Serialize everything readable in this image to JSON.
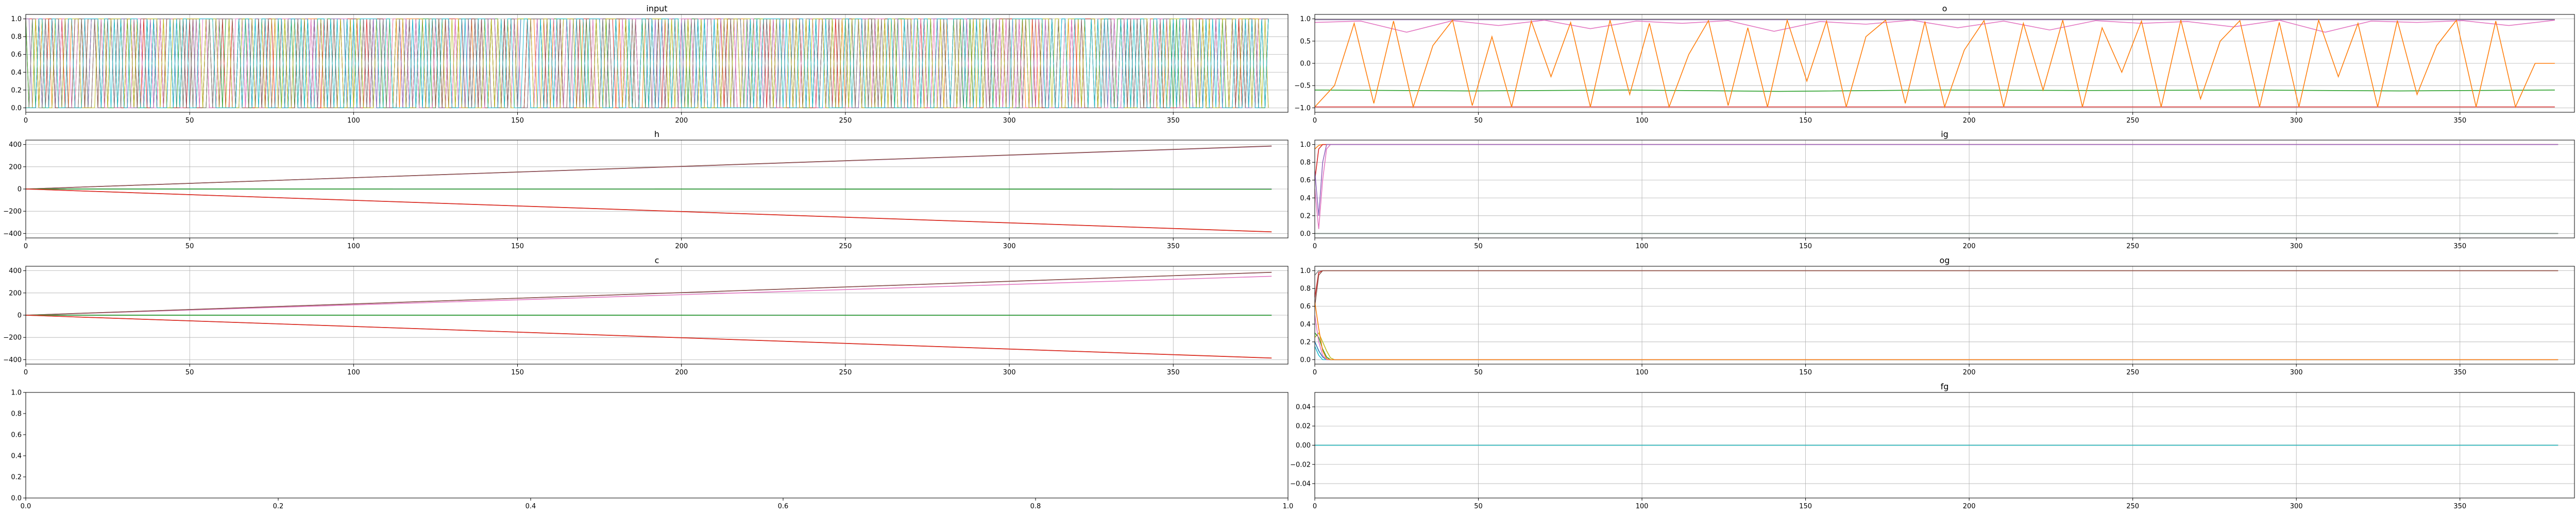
{
  "figure": {
    "background": "#ffffff"
  },
  "chart_data": [
    {
      "id": "input",
      "type": "line",
      "title": "input",
      "xlim": [
        0,
        385
      ],
      "ylim": [
        -0.05,
        1.05
      ],
      "grid": true,
      "xticks": [
        0,
        50,
        100,
        150,
        200,
        250,
        300,
        350
      ],
      "yticks": [
        0.0,
        0.2,
        0.4,
        0.6,
        0.8,
        1.0
      ],
      "ytick_labels": [
        "0.0",
        "0.2",
        "0.4",
        "0.6",
        "0.8",
        "1.0"
      ],
      "n_points": 380,
      "binary_series": {
        "count": 10,
        "colors": [
          "#1f77b4",
          "#ff7f0e",
          "#2ca02c",
          "#d62728",
          "#9467bd",
          "#8c564b",
          "#e377c2",
          "#7f7f7f",
          "#bcbd22",
          "#17becf"
        ],
        "min": 0.0,
        "max": 1.0
      },
      "series": []
    },
    {
      "id": "o",
      "type": "line",
      "title": "o",
      "xlim": [
        0,
        385
      ],
      "ylim": [
        -1.1,
        1.1
      ],
      "grid": true,
      "xticks": [
        0,
        50,
        100,
        150,
        200,
        250,
        300,
        350
      ],
      "yticks": [
        -1.0,
        -0.5,
        0.0,
        0.5,
        1.0
      ],
      "ytick_labels": [
        "−1.0",
        "−0.5",
        "0.0",
        "0.5",
        "1.0"
      ],
      "n_points": 380,
      "series": [
        {
          "color": "#d62728",
          "values": [
            -0.98,
            -0.98
          ]
        },
        {
          "color": "#2ca02c",
          "values": [
            -0.6,
            -0.62,
            -0.6,
            -0.63,
            -0.6,
            -0.61,
            -0.6,
            -0.62,
            -0.6
          ]
        },
        {
          "color": "#9467bd",
          "values": [
            0.98,
            0.98
          ]
        },
        {
          "color": "#7f7f7f",
          "values": [
            0.99,
            0.99
          ]
        },
        {
          "color": "#e377c2",
          "values": [
            0.92,
            0.95,
            0.7,
            0.96,
            0.85,
            0.97,
            0.78,
            0.95,
            0.9,
            0.96,
            0.72,
            0.94,
            0.88,
            0.97,
            0.8,
            0.95,
            0.75,
            0.96,
            0.9,
            0.94,
            0.82,
            0.97,
            0.7,
            0.95,
            0.92,
            0.96,
            0.85,
            0.97
          ]
        },
        {
          "color": "#ff7f0e",
          "values": [
            -0.98,
            -0.5,
            0.9,
            -0.9,
            0.95,
            -0.98,
            0.4,
            0.97,
            -0.95,
            0.6,
            -0.98,
            0.95,
            -0.3,
            0.92,
            -0.98,
            0.97,
            -0.7,
            0.9,
            -0.98,
            0.2,
            0.96,
            -0.95,
            0.8,
            -0.98,
            0.97,
            -0.4,
            0.95,
            -0.98,
            0.6,
            0.97,
            -0.9,
            0.94,
            -0.98,
            0.3,
            0.96,
            -0.98,
            0.9,
            -0.6,
            0.97,
            -0.98,
            0.8,
            -0.2,
            0.95,
            -0.98,
            0.97,
            -0.8,
            0.5,
            0.96,
            -0.98,
            0.92,
            -0.98,
            0.97,
            -0.3,
            0.9,
            -0.98,
            0.96,
            -0.7,
            0.4,
            0.97,
            -0.98,
            0.95,
            -0.98,
            0.0,
            0.0
          ]
        }
      ]
    },
    {
      "id": "h",
      "type": "line",
      "title": "h",
      "xlim": [
        0,
        385
      ],
      "ylim": [
        -440,
        440
      ],
      "grid": true,
      "xticks": [
        0,
        50,
        100,
        150,
        200,
        250,
        300,
        350
      ],
      "yticks": [
        -400,
        -200,
        0,
        200,
        400
      ],
      "ytick_labels": [
        "−400",
        "−200",
        "0",
        "200",
        "400"
      ],
      "series": [
        {
          "color": "#1f77b4",
          "values": [
            0,
            0
          ]
        },
        {
          "color": "#7f7f7f",
          "values": [
            0,
            0
          ]
        },
        {
          "color": "#e377c2",
          "values": [
            0,
            385
          ]
        },
        {
          "color": "#9467bd",
          "values": [
            0,
            386
          ]
        },
        {
          "color": "#8c564b",
          "values": [
            0,
            387
          ]
        },
        {
          "color": "#2ca02c",
          "values": [
            0,
            -2
          ]
        },
        {
          "color": "#ff7f0e",
          "values": [
            0,
            -385
          ]
        },
        {
          "color": "#d62728",
          "values": [
            0,
            -386
          ]
        }
      ]
    },
    {
      "id": "ig",
      "type": "line",
      "title": "ig",
      "xlim": [
        0,
        385
      ],
      "ylim": [
        -0.05,
        1.05
      ],
      "grid": true,
      "xticks": [
        0,
        50,
        100,
        150,
        200,
        250,
        300,
        350
      ],
      "yticks": [
        0.0,
        0.2,
        0.4,
        0.6,
        0.8,
        1.0
      ],
      "ytick_labels": [
        "0.0",
        "0.2",
        "0.4",
        "0.6",
        "0.8",
        "1.0"
      ],
      "series": [
        {
          "color": "#1f77b4",
          "values": [
            0.0,
            0.0
          ]
        },
        {
          "color": "#2ca02c",
          "values": [
            0.0,
            0.0
          ]
        },
        {
          "color": "#7f7f7f",
          "values": [
            0.0,
            0.0
          ]
        },
        {
          "color": "#ff7f0e",
          "values": [
            0.95,
            0.99,
            1.0,
            1.0
          ]
        },
        {
          "color": "#d62728",
          "values": [
            0.6,
            0.95,
            1.0,
            1.0
          ]
        },
        {
          "color": "#e377c2",
          "values": [
            0.5,
            0.05,
            0.6,
            0.95,
            1.0,
            1.0
          ]
        },
        {
          "color": "#9467bd",
          "values": [
            0.7,
            0.2,
            0.8,
            1.0,
            1.0
          ]
        }
      ]
    },
    {
      "id": "c",
      "type": "line",
      "title": "c",
      "xlim": [
        0,
        385
      ],
      "ylim": [
        -440,
        440
      ],
      "grid": true,
      "xticks": [
        0,
        50,
        100,
        150,
        200,
        250,
        300,
        350
      ],
      "yticks": [
        -400,
        -200,
        0,
        200,
        400
      ],
      "ytick_labels": [
        "−400",
        "−200",
        "0",
        "200",
        "400"
      ],
      "series": [
        {
          "color": "#1f77b4",
          "values": [
            0,
            0
          ]
        },
        {
          "color": "#7f7f7f",
          "values": [
            0,
            0
          ]
        },
        {
          "color": "#e377c2",
          "values": [
            0,
            350
          ]
        },
        {
          "color": "#9467bd",
          "values": [
            0,
            385
          ]
        },
        {
          "color": "#8c564b",
          "values": [
            0,
            386
          ]
        },
        {
          "color": "#2ca02c",
          "values": [
            0,
            -1
          ]
        },
        {
          "color": "#ff7f0e",
          "values": [
            0,
            -385
          ]
        },
        {
          "color": "#d62728",
          "values": [
            0,
            -386
          ]
        }
      ]
    },
    {
      "id": "og",
      "type": "line",
      "title": "og",
      "xlim": [
        0,
        385
      ],
      "ylim": [
        -0.05,
        1.05
      ],
      "grid": true,
      "xticks": [
        0,
        50,
        100,
        150,
        200,
        250,
        300,
        350
      ],
      "yticks": [
        0.0,
        0.2,
        0.4,
        0.6,
        0.8,
        1.0
      ],
      "ytick_labels": [
        "0.0",
        "0.2",
        "0.4",
        "0.6",
        "0.8",
        "1.0"
      ],
      "series": [
        {
          "color": "#7f7f7f",
          "values": [
            0.95,
            1.0,
            1.0
          ]
        },
        {
          "color": "#d62728",
          "values": [
            0.7,
            0.98,
            1.0,
            1.0
          ]
        },
        {
          "color": "#8c564b",
          "values": [
            0.6,
            0.95,
            1.0,
            1.0
          ]
        },
        {
          "color": "#bcbd22",
          "values": [
            0.25,
            0.3,
            0.2,
            0.1,
            0.02,
            0.0,
            0.0
          ]
        },
        {
          "color": "#2ca02c",
          "values": [
            0.3,
            0.25,
            0.12,
            0.03,
            0.0,
            0.0
          ]
        },
        {
          "color": "#1f77b4",
          "values": [
            0.2,
            0.1,
            0.03,
            0.0,
            0.0
          ]
        },
        {
          "color": "#17becf",
          "values": [
            0.15,
            0.05,
            0.0,
            0.0
          ]
        },
        {
          "color": "#e377c2",
          "values": [
            0.5,
            0.2,
            0.05,
            0.0,
            0.0
          ]
        },
        {
          "color": "#ff7f0e",
          "values": [
            0.65,
            0.35,
            0.1,
            0.01,
            0.0,
            0.0
          ]
        }
      ]
    },
    {
      "id": "empty",
      "type": "line",
      "title": "",
      "xlim": [
        0.0,
        1.0
      ],
      "ylim": [
        0.0,
        1.0
      ],
      "grid": false,
      "xticks": [
        0.0,
        0.2,
        0.4,
        0.6,
        0.8,
        1.0
      ],
      "xtick_labels": [
        "0.0",
        "0.2",
        "0.4",
        "0.6",
        "0.8",
        "1.0"
      ],
      "yticks": [
        0.0,
        0.2,
        0.4,
        0.6,
        0.8,
        1.0
      ],
      "ytick_labels": [
        "0.0",
        "0.2",
        "0.4",
        "0.6",
        "0.8",
        "1.0"
      ],
      "series": []
    },
    {
      "id": "fg",
      "type": "line",
      "title": "fg",
      "xlim": [
        0,
        385
      ],
      "ylim": [
        -0.055,
        0.055
      ],
      "grid": true,
      "xticks": [
        0,
        50,
        100,
        150,
        200,
        250,
        300,
        350
      ],
      "yticks": [
        -0.04,
        -0.02,
        0.0,
        0.02,
        0.04
      ],
      "ytick_labels": [
        "−0.04",
        "−0.02",
        "0.00",
        "0.02",
        "0.04"
      ],
      "series": [
        {
          "color": "#1f77b4",
          "values": [
            0.0,
            0.0
          ]
        },
        {
          "color": "#ff7f0e",
          "values": [
            0.0,
            0.0
          ]
        },
        {
          "color": "#17becf",
          "values": [
            0.0,
            0.0
          ]
        }
      ]
    }
  ]
}
